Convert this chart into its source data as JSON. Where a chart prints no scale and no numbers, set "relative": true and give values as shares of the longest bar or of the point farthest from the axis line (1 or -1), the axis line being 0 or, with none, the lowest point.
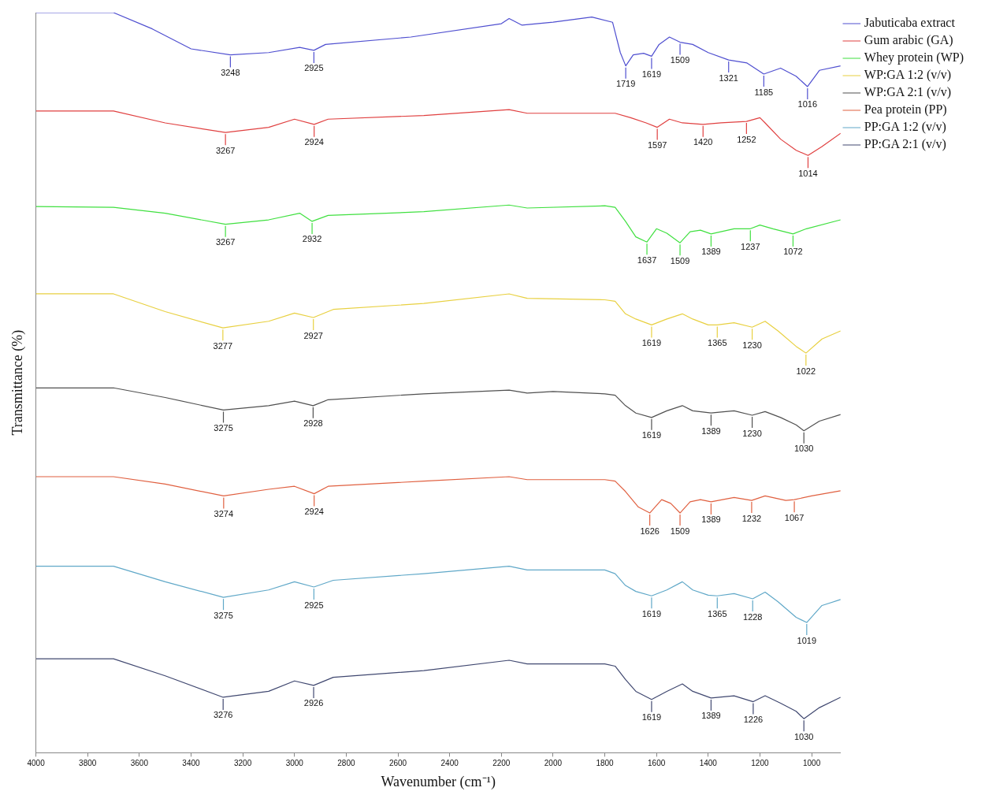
{
  "chart_data": {
    "type": "line",
    "relative": true,
    "xlabel": "Wavenumber (cm⁻¹)",
    "ylabel": "Transmittance (%)",
    "xlim": [
      4000,
      888
    ],
    "xticks": [
      4000,
      3800,
      3600,
      3400,
      3200,
      3000,
      2800,
      2600,
      2400,
      2200,
      2000,
      1800,
      1600,
      1400,
      1200,
      1000
    ],
    "grid": false,
    "legend": "top right",
    "marker": "none",
    "line_style": "solid",
    "series": [
      {
        "name": "Jabuticaba extract",
        "color": "#4f4fd0",
        "x": [
          4000,
          3700,
          3550,
          3400,
          3248,
          3100,
          2980,
          2925,
          2880,
          2550,
          2200,
          2170,
          2120,
          2000,
          1850,
          1770,
          1740,
          1719,
          1690,
          1650,
          1619,
          1590,
          1550,
          1509,
          1460,
          1400,
          1321,
          1250,
          1185,
          1120,
          1060,
          1016,
          970,
          888
        ],
        "values": [
          1,
          1,
          0.978,
          0.951,
          0.943,
          0.946,
          0.953,
          0.949,
          0.957,
          0.967,
          0.985,
          0.992,
          0.983,
          0.987,
          0.994,
          0.987,
          0.946,
          0.928,
          0.943,
          0.945,
          0.941,
          0.957,
          0.967,
          0.96,
          0.957,
          0.946,
          0.936,
          0.932,
          0.917,
          0.925,
          0.914,
          0.9,
          0.922,
          0.928
        ]
      },
      {
        "name": "Gum arabic (GA)",
        "color": "#e04040",
        "x": [
          4000,
          3700,
          3500,
          3267,
          3100,
          3000,
          2924,
          2870,
          2500,
          2170,
          2100,
          1800,
          1760,
          1700,
          1640,
          1597,
          1550,
          1500,
          1420,
          1350,
          1252,
          1200,
          1180,
          1120,
          1060,
          1014,
          960,
          888
        ],
        "values": [
          0.867,
          0.867,
          0.851,
          0.838,
          0.845,
          0.856,
          0.849,
          0.856,
          0.861,
          0.869,
          0.864,
          0.864,
          0.864,
          0.858,
          0.851,
          0.845,
          0.856,
          0.851,
          0.849,
          0.851,
          0.853,
          0.858,
          0.851,
          0.829,
          0.814,
          0.807,
          0.819,
          0.837
        ]
      },
      {
        "name": "Whey protein (WP)",
        "color": "#40e040",
        "x": [
          4000,
          3700,
          3500,
          3267,
          3100,
          2980,
          2932,
          2870,
          2500,
          2170,
          2100,
          1800,
          1760,
          1720,
          1680,
          1637,
          1600,
          1560,
          1509,
          1470,
          1430,
          1389,
          1300,
          1237,
          1200,
          1150,
          1072,
          1020,
          888
        ],
        "values": [
          0.738,
          0.737,
          0.729,
          0.714,
          0.72,
          0.729,
          0.718,
          0.726,
          0.731,
          0.74,
          0.736,
          0.739,
          0.737,
          0.718,
          0.697,
          0.69,
          0.708,
          0.702,
          0.689,
          0.704,
          0.706,
          0.701,
          0.708,
          0.708,
          0.713,
          0.708,
          0.701,
          0.708,
          0.72
        ]
      },
      {
        "name": "WP:GA 1:2 (v/v)",
        "color": "#e8d040",
        "x": [
          4000,
          3700,
          3500,
          3277,
          3100,
          3000,
          2927,
          2850,
          2500,
          2170,
          2100,
          1800,
          1760,
          1720,
          1680,
          1619,
          1560,
          1500,
          1460,
          1400,
          1365,
          1300,
          1230,
          1180,
          1130,
          1060,
          1022,
          960,
          888
        ],
        "values": [
          0.62,
          0.62,
          0.596,
          0.574,
          0.583,
          0.594,
          0.588,
          0.599,
          0.607,
          0.62,
          0.614,
          0.612,
          0.61,
          0.593,
          0.586,
          0.578,
          0.586,
          0.593,
          0.586,
          0.578,
          0.578,
          0.581,
          0.575,
          0.583,
          0.57,
          0.549,
          0.54,
          0.559,
          0.57
        ]
      },
      {
        "name": "WP:GA 2:1 (v/v)",
        "color": "#505050",
        "x": [
          4000,
          3700,
          3500,
          3275,
          3100,
          3000,
          2928,
          2870,
          2500,
          2170,
          2100,
          2000,
          1800,
          1760,
          1720,
          1680,
          1619,
          1560,
          1500,
          1460,
          1389,
          1300,
          1230,
          1180,
          1120,
          1060,
          1030,
          970,
          888
        ],
        "values": [
          0.493,
          0.493,
          0.48,
          0.463,
          0.469,
          0.475,
          0.469,
          0.477,
          0.485,
          0.49,
          0.486,
          0.488,
          0.485,
          0.483,
          0.469,
          0.459,
          0.453,
          0.462,
          0.469,
          0.462,
          0.459,
          0.462,
          0.456,
          0.461,
          0.453,
          0.443,
          0.435,
          0.448,
          0.457
        ]
      },
      {
        "name": "Pea protein (PP)",
        "color": "#e06040",
        "x": [
          4000,
          3700,
          3500,
          3274,
          3100,
          3000,
          2924,
          2870,
          2500,
          2170,
          2100,
          1800,
          1760,
          1720,
          1670,
          1626,
          1580,
          1545,
          1509,
          1470,
          1430,
          1389,
          1300,
          1232,
          1180,
          1100,
          1067,
          1000,
          888
        ],
        "values": [
          0.373,
          0.373,
          0.363,
          0.347,
          0.356,
          0.36,
          0.35,
          0.36,
          0.367,
          0.373,
          0.369,
          0.369,
          0.367,
          0.353,
          0.332,
          0.324,
          0.342,
          0.337,
          0.324,
          0.339,
          0.342,
          0.339,
          0.345,
          0.341,
          0.347,
          0.341,
          0.342,
          0.347,
          0.354
        ]
      },
      {
        "name": "PP:GA 1:2 (v/v)",
        "color": "#60a8c8",
        "x": [
          4000,
          3700,
          3500,
          3275,
          3100,
          3000,
          2925,
          2850,
          2500,
          2170,
          2100,
          1800,
          1760,
          1720,
          1680,
          1619,
          1560,
          1500,
          1460,
          1400,
          1365,
          1300,
          1228,
          1180,
          1130,
          1060,
          1019,
          960,
          888
        ],
        "values": [
          0.252,
          0.252,
          0.231,
          0.21,
          0.22,
          0.231,
          0.224,
          0.233,
          0.242,
          0.252,
          0.247,
          0.247,
          0.242,
          0.226,
          0.218,
          0.212,
          0.22,
          0.231,
          0.22,
          0.213,
          0.212,
          0.215,
          0.208,
          0.217,
          0.204,
          0.183,
          0.176,
          0.199,
          0.207
        ]
      },
      {
        "name": "PP:GA 2:1 (v/v)",
        "color": "#404870",
        "x": [
          4000,
          3700,
          3500,
          3276,
          3100,
          3000,
          2926,
          2850,
          2500,
          2170,
          2100,
          1800,
          1760,
          1720,
          1680,
          1619,
          1560,
          1500,
          1460,
          1389,
          1300,
          1226,
          1180,
          1120,
          1060,
          1030,
          970,
          888
        ],
        "values": [
          0.127,
          0.127,
          0.104,
          0.075,
          0.083,
          0.097,
          0.091,
          0.102,
          0.111,
          0.125,
          0.12,
          0.12,
          0.117,
          0.099,
          0.083,
          0.072,
          0.083,
          0.093,
          0.083,
          0.074,
          0.077,
          0.069,
          0.077,
          0.067,
          0.056,
          0.046,
          0.061,
          0.075
        ]
      }
    ],
    "annotations": [
      {
        "text": "3248",
        "x": 3248,
        "y": 0.943
      },
      {
        "text": "2925",
        "x": 2925,
        "y": 0.949
      },
      {
        "text": "1719",
        "x": 1719,
        "y": 0.928
      },
      {
        "text": "1619",
        "x": 1619,
        "y": 0.941
      },
      {
        "text": "1509",
        "x": 1509,
        "y": 0.96
      },
      {
        "text": "1321",
        "x": 1321,
        "y": 0.936
      },
      {
        "text": "1185",
        "x": 1185,
        "y": 0.917
      },
      {
        "text": "1016",
        "x": 1016,
        "y": 0.9
      },
      {
        "text": "3267",
        "x": 3267,
        "y": 0.838
      },
      {
        "text": "2924",
        "x": 2924,
        "y": 0.849
      },
      {
        "text": "1597",
        "x": 1597,
        "y": 0.845
      },
      {
        "text": "1420",
        "x": 1420,
        "y": 0.849
      },
      {
        "text": "1252",
        "x": 1252,
        "y": 0.853
      },
      {
        "text": "1014",
        "x": 1014,
        "y": 0.807
      },
      {
        "text": "3267",
        "x": 3267,
        "y": 0.714
      },
      {
        "text": "2932",
        "x": 2932,
        "y": 0.718
      },
      {
        "text": "1637",
        "x": 1637,
        "y": 0.69
      },
      {
        "text": "1509",
        "x": 1509,
        "y": 0.689
      },
      {
        "text": "1389",
        "x": 1389,
        "y": 0.701
      },
      {
        "text": "1237",
        "x": 1237,
        "y": 0.708
      },
      {
        "text": "1072",
        "x": 1072,
        "y": 0.701
      },
      {
        "text": "3277",
        "x": 3277,
        "y": 0.574
      },
      {
        "text": "2927",
        "x": 2927,
        "y": 0.588
      },
      {
        "text": "1619",
        "x": 1619,
        "y": 0.578
      },
      {
        "text": "1365",
        "x": 1365,
        "y": 0.578
      },
      {
        "text": "1230",
        "x": 1230,
        "y": 0.575
      },
      {
        "text": "1022",
        "x": 1022,
        "y": 0.54
      },
      {
        "text": "3275",
        "x": 3275,
        "y": 0.463
      },
      {
        "text": "2928",
        "x": 2928,
        "y": 0.469
      },
      {
        "text": "1619",
        "x": 1619,
        "y": 0.453
      },
      {
        "text": "1389",
        "x": 1389,
        "y": 0.459
      },
      {
        "text": "1230",
        "x": 1230,
        "y": 0.456
      },
      {
        "text": "1030",
        "x": 1030,
        "y": 0.435
      },
      {
        "text": "3274",
        "x": 3274,
        "y": 0.347
      },
      {
        "text": "2924",
        "x": 2924,
        "y": 0.35
      },
      {
        "text": "1626",
        "x": 1626,
        "y": 0.324
      },
      {
        "text": "1509",
        "x": 1509,
        "y": 0.324
      },
      {
        "text": "1389",
        "x": 1389,
        "y": 0.339
      },
      {
        "text": "1232",
        "x": 1232,
        "y": 0.341
      },
      {
        "text": "1067",
        "x": 1067,
        "y": 0.342
      },
      {
        "text": "3275",
        "x": 3275,
        "y": 0.21
      },
      {
        "text": "2925",
        "x": 2925,
        "y": 0.224
      },
      {
        "text": "1619",
        "x": 1619,
        "y": 0.212
      },
      {
        "text": "1365",
        "x": 1365,
        "y": 0.212
      },
      {
        "text": "1228",
        "x": 1228,
        "y": 0.208
      },
      {
        "text": "1019",
        "x": 1019,
        "y": 0.176
      },
      {
        "text": "3276",
        "x": 3276,
        "y": 0.075
      },
      {
        "text": "2926",
        "x": 2926,
        "y": 0.091
      },
      {
        "text": "1619",
        "x": 1619,
        "y": 0.072
      },
      {
        "text": "1389",
        "x": 1389,
        "y": 0.074
      },
      {
        "text": "1226",
        "x": 1226,
        "y": 0.069
      },
      {
        "text": "1030",
        "x": 1030,
        "y": 0.046
      }
    ]
  }
}
